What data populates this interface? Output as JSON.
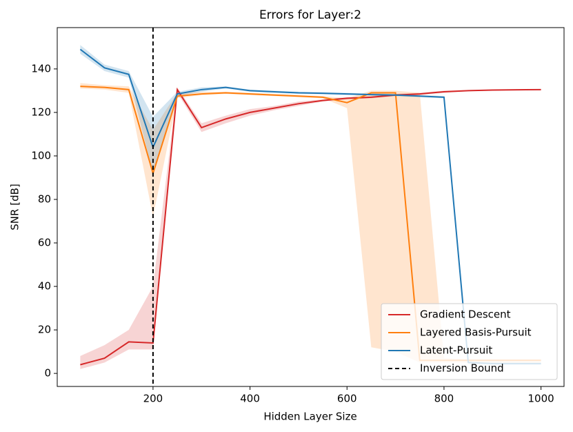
{
  "chart_data": {
    "type": "line",
    "title": "Errors for Layer:2",
    "x_label": "Hidden Layer Size",
    "y_label": "SNR [dB]",
    "x": [
      50,
      100,
      150,
      200,
      250,
      300,
      350,
      400,
      450,
      500,
      550,
      600,
      650,
      700,
      750,
      800,
      850,
      900,
      950,
      1000
    ],
    "series": [
      {
        "name": "Gradient Descent",
        "color": "#d62728",
        "values": [
          4,
          7,
          14.5,
          14,
          130.5,
          113,
          117,
          120,
          122,
          124,
          125.5,
          126.5,
          127,
          128,
          128.5,
          129.5,
          130,
          130.3,
          130.4,
          130.5
        ],
        "lower": [
          2,
          5,
          11,
          11,
          129,
          111,
          115,
          118.5,
          121,
          123,
          125,
          126,
          126.5,
          127.5,
          128,
          129,
          129.8,
          130,
          130.2,
          130.3
        ],
        "upper": [
          8,
          13,
          20,
          40,
          131.5,
          115,
          118.5,
          121.5,
          123,
          125,
          126,
          127,
          127.5,
          128.5,
          129,
          130,
          130.3,
          130.5,
          130.6,
          130.7
        ]
      },
      {
        "name": "Layered Basis-Pursuit",
        "color": "#ff7f0e",
        "values": [
          132,
          131.5,
          130.5,
          92,
          127.5,
          128.5,
          129,
          128.5,
          128,
          127.5,
          127,
          124.5,
          129,
          129,
          6,
          6,
          6,
          6,
          6,
          6
        ],
        "lower": [
          131,
          130.5,
          129,
          72,
          126.5,
          128,
          128.5,
          128,
          127.5,
          127,
          126.5,
          122,
          12,
          10,
          5,
          5,
          5,
          5,
          5,
          5
        ],
        "upper": [
          133.5,
          132.5,
          132,
          112,
          129,
          129.5,
          129.5,
          129,
          128.5,
          128,
          127.5,
          126.5,
          130,
          130,
          129,
          7,
          6.5,
          6.5,
          6.5,
          6.5
        ]
      },
      {
        "name": "Latent-Pursuit",
        "color": "#1f77b4",
        "values": [
          149,
          140.5,
          137.5,
          104,
          128.5,
          130.5,
          131.5,
          130,
          129.5,
          129,
          128.8,
          128.5,
          128.2,
          128,
          127.5,
          127,
          5,
          4.5,
          4.5,
          4.5
        ],
        "lower": [
          147,
          139,
          136,
          92,
          127.5,
          129.5,
          131,
          129.5,
          129,
          128.5,
          128.3,
          128,
          127.8,
          127.5,
          127,
          126.5,
          4.5,
          4,
          4,
          4
        ],
        "upper": [
          151,
          142,
          139,
          118,
          129.5,
          131.5,
          132,
          130.5,
          130,
          129.5,
          129.2,
          129,
          128.7,
          128.5,
          128,
          127.5,
          5.5,
          5,
          5,
          5
        ]
      }
    ],
    "reference_line": {
      "name": "Inversion Bound",
      "x": 200,
      "color": "#000000"
    },
    "xlim": [
      2.5,
      1047.5
    ],
    "ylim": [
      -6,
      159
    ],
    "xticks": [
      200,
      400,
      600,
      800,
      1000
    ],
    "yticks": [
      0,
      20,
      40,
      60,
      80,
      100,
      120,
      140
    ],
    "legend": "lower right",
    "band_opacity": 0.2
  }
}
